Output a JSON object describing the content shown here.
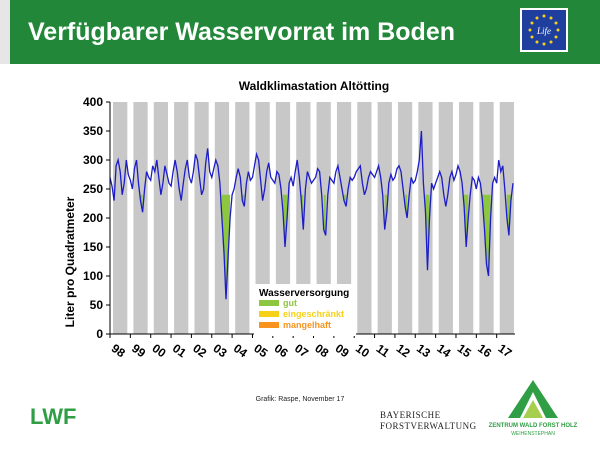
{
  "header": {
    "title": "Verfügbarer Wasservorrat im Boden",
    "bg_color": "#23873a"
  },
  "logos": {
    "eu_life": "Life",
    "lwf": "LWF",
    "bayerische": "BAYERISCHE",
    "forstverwaltung": "FORSTVERWALTUNG",
    "zentrum_line1": "ZENTRUM WALD FORST HOLZ",
    "zentrum_line2": "WEIHENSTEPHAN"
  },
  "credit": "Grafik: Raspe, November 17",
  "chart_data": {
    "type": "line",
    "title": "Waldklimastation Altötting",
    "ylabel": "Liter pro Quadratmeter",
    "xlabel": "",
    "ylim": [
      0,
      400
    ],
    "yticks": [
      0,
      50,
      100,
      150,
      200,
      250,
      300,
      350,
      400
    ],
    "xlim": [
      1998.0,
      2017.9
    ],
    "xtick_labels": [
      "98",
      "99",
      "00",
      "01",
      "02",
      "03",
      "04",
      "05",
      "06",
      "07",
      "08",
      "09",
      "10",
      "11",
      "12",
      "13",
      "14",
      "15",
      "16",
      "17"
    ],
    "grid": "alternating gray bands per year",
    "line_color": "#1c1cc8",
    "legend": {
      "title": "Wasserversorgung",
      "placement": "bottom-center",
      "items": [
        {
          "label": "gut",
          "color": "#8dc63f"
        },
        {
          "label": "eingeschränkt",
          "color": "#f7d117"
        },
        {
          "label": "mangelhaft",
          "color": "#f7931e"
        }
      ]
    },
    "threshold_fill": {
      "level": 240,
      "color": "#8dc63f"
    },
    "series": [
      {
        "name": "",
        "x": [
          1998.0,
          1998.1,
          1998.2,
          1998.3,
          1998.4,
          1998.5,
          1998.6,
          1998.7,
          1998.8,
          1998.9,
          1999.0,
          1999.1,
          1999.2,
          1999.3,
          1999.4,
          1999.5,
          1999.6,
          1999.7,
          1999.8,
          1999.9,
          2000.0,
          2000.1,
          2000.2,
          2000.3,
          2000.4,
          2000.5,
          2000.6,
          2000.7,
          2000.8,
          2000.9,
          2001.0,
          2001.1,
          2001.2,
          2001.3,
          2001.4,
          2001.5,
          2001.6,
          2001.7,
          2001.8,
          2001.9,
          2002.0,
          2002.1,
          2002.2,
          2002.3,
          2002.4,
          2002.5,
          2002.6,
          2002.7,
          2002.8,
          2002.9,
          2003.0,
          2003.1,
          2003.2,
          2003.3,
          2003.4,
          2003.5,
          2003.6,
          2003.7,
          2003.8,
          2003.9,
          2004.0,
          2004.1,
          2004.2,
          2004.3,
          2004.4,
          2004.5,
          2004.6,
          2004.7,
          2004.8,
          2004.9,
          2005.0,
          2005.1,
          2005.2,
          2005.3,
          2005.4,
          2005.5,
          2005.6,
          2005.7,
          2005.8,
          2005.9,
          2006.0,
          2006.1,
          2006.2,
          2006.3,
          2006.4,
          2006.5,
          2006.6,
          2006.7,
          2006.8,
          2006.9,
          2007.0,
          2007.1,
          2007.2,
          2007.3,
          2007.4,
          2007.5,
          2007.6,
          2007.7,
          2007.8,
          2007.9,
          2008.0,
          2008.1,
          2008.2,
          2008.3,
          2008.4,
          2008.5,
          2008.6,
          2008.7,
          2008.8,
          2008.9,
          2009.0,
          2009.1,
          2009.2,
          2009.3,
          2009.4,
          2009.5,
          2009.6,
          2009.7,
          2009.8,
          2009.9,
          2010.0,
          2010.1,
          2010.2,
          2010.3,
          2010.4,
          2010.5,
          2010.6,
          2010.7,
          2010.8,
          2010.9,
          2011.0,
          2011.1,
          2011.2,
          2011.3,
          2011.4,
          2011.5,
          2011.6,
          2011.7,
          2011.8,
          2011.9,
          2012.0,
          2012.1,
          2012.2,
          2012.3,
          2012.4,
          2012.5,
          2012.6,
          2012.7,
          2012.8,
          2012.9,
          2013.0,
          2013.1,
          2013.2,
          2013.3,
          2013.4,
          2013.5,
          2013.6,
          2013.7,
          2013.8,
          2013.9,
          2014.0,
          2014.1,
          2014.2,
          2014.3,
          2014.4,
          2014.5,
          2014.6,
          2014.7,
          2014.8,
          2014.9,
          2015.0,
          2015.1,
          2015.2,
          2015.3,
          2015.4,
          2015.5,
          2015.6,
          2015.7,
          2015.8,
          2015.9,
          2016.0,
          2016.1,
          2016.2,
          2016.3,
          2016.4,
          2016.5,
          2016.6,
          2016.7,
          2016.8,
          2016.9,
          2017.0,
          2017.1,
          2017.2,
          2017.3,
          2017.4,
          2017.5,
          2017.6,
          2017.7,
          2017.8
        ],
        "y": [
          270,
          255,
          230,
          290,
          300,
          280,
          240,
          260,
          300,
          275,
          265,
          250,
          285,
          300,
          260,
          230,
          210,
          250,
          280,
          270,
          265,
          290,
          280,
          300,
          270,
          240,
          260,
          290,
          275,
          260,
          255,
          280,
          300,
          280,
          250,
          230,
          260,
          285,
          300,
          270,
          260,
          280,
          310,
          300,
          270,
          240,
          250,
          295,
          320,
          280,
          270,
          285,
          300,
          290,
          260,
          200,
          140,
          60,
          130,
          200,
          240,
          250,
          270,
          285,
          270,
          230,
          220,
          260,
          280,
          265,
          270,
          290,
          310,
          300,
          265,
          230,
          250,
          280,
          295,
          270,
          265,
          260,
          280,
          275,
          250,
          210,
          150,
          200,
          260,
          270,
          255,
          280,
          300,
          270,
          230,
          180,
          250,
          280,
          270,
          260,
          265,
          270,
          285,
          280,
          240,
          180,
          170,
          240,
          270,
          265,
          260,
          280,
          290,
          270,
          250,
          230,
          220,
          250,
          270,
          265,
          270,
          280,
          285,
          290,
          260,
          240,
          250,
          270,
          280,
          275,
          270,
          280,
          290,
          270,
          240,
          180,
          210,
          260,
          275,
          265,
          270,
          285,
          290,
          280,
          250,
          220,
          200,
          240,
          270,
          260,
          265,
          280,
          300,
          350,
          260,
          210,
          110,
          200,
          260,
          250,
          260,
          270,
          280,
          270,
          240,
          220,
          240,
          270,
          280,
          265,
          275,
          290,
          280,
          260,
          220,
          150,
          200,
          240,
          270,
          265,
          250,
          270,
          260,
          230,
          180,
          120,
          100,
          200,
          260,
          270,
          260,
          300,
          280,
          290,
          250,
          200,
          170,
          230,
          260
        ]
      }
    ]
  }
}
